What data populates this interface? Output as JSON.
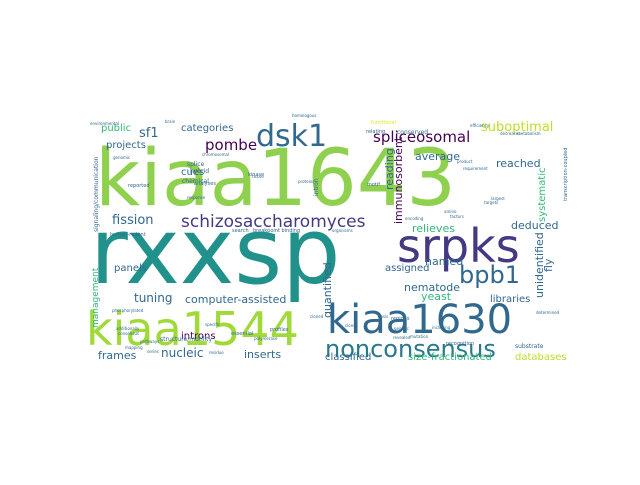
{
  "wordcloud": {
    "colors": {
      "background": "#ffffff",
      "lime": "#8fd14f",
      "green": "#35b779",
      "teal": "#21918c",
      "blue": "#31688e",
      "indigo": "#443983",
      "purple": "#440154",
      "yellow": "#e2e418"
    },
    "words": {
      "kiaa1643": "kiaa1643",
      "rxxsp": "rxxsp",
      "srpks": "srpks",
      "kiaa1544": "kiaa1544",
      "kiaa1630": "kiaa1630",
      "nonconsensus": "nonconsensus",
      "dsk1": "dsk1",
      "bpb1": "bpb1",
      "schizosaccharomyces": "schizosaccharomyces",
      "pombe": "pombe",
      "spliceosomal": "spliceosomal",
      "suboptimal": "suboptimal",
      "fission": "fission",
      "sf1": "sf1",
      "categories": "categories",
      "projects": "projects",
      "public": "public",
      "cues": "cues",
      "immunosorbent": "immunosorbent",
      "reading": "reading",
      "average": "average",
      "reached": "reached",
      "systematic": "systematic",
      "unidentified": "unidentified",
      "deduced": "deduced",
      "fly": "fly",
      "relieves": "relieves",
      "named": "named",
      "nematode": "nematode",
      "yeast": "yeast",
      "libraries": "libraries",
      "assigned": "assigned",
      "quantified": "quantified",
      "intron": "intron",
      "panels": "panels",
      "tuning": "tuning",
      "computer_assisted": "computer-assisted",
      "introns": "introns",
      "management": "management",
      "frames": "frames",
      "nucleic": "nucleic",
      "inserts": "inserts",
      "classified": "classified",
      "size_fractionated": "size-fractionated",
      "databases": "databases",
      "signaling_communication": "signaling/communication",
      "human_rodent": "human-rodent",
      "chemical": "chemical",
      "hybrid": "hybrid",
      "structure_motility": "structure/motility",
      "search": "search",
      "breakpoint_binding": "breakpoint binding",
      "conserved": "conserved",
      "relating": "relating",
      "substrate": "substrate",
      "recognition": "recognition",
      "transcription_coupled": "transcription-coupled",
      "splice": "splice",
      "analyses": "analyses",
      "reported": "reported",
      "essential": "essential",
      "pathways": "pathways",
      "additionally": "additionally",
      "regions": "regions",
      "profiles": "profiles",
      "motif": "motif",
      "kinase": "kinase",
      "genetic": "genetic",
      "polymerase": "polymerase",
      "requirement": "requirement",
      "efficiency": "efficiency",
      "determined": "determined",
      "metabolism": "metabolism",
      "decreases": "decreases",
      "response": "response",
      "consensus": "consensus",
      "phosphorylated": "phosphorylated",
      "mapping": "mapping",
      "functional": "functional",
      "environmental": "environmental",
      "genomic": "genomic",
      "organisms": "organisms",
      "including": "including",
      "largest": "largest",
      "cloned": "cloned",
      "basis": "basis",
      "encoding": "encoding",
      "clones": "clones",
      "proteins": "proteins",
      "targets": "targets",
      "amino": "amino",
      "factors": "factors",
      "tissue": "tissue",
      "series": "series",
      "revealed": "revealed",
      "mutation": "mutation",
      "residue": "residue",
      "product": "product",
      "specific": "specific",
      "brain": "brain",
      "chromosomal": "chromosomal",
      "homologous": "homologous"
    }
  }
}
